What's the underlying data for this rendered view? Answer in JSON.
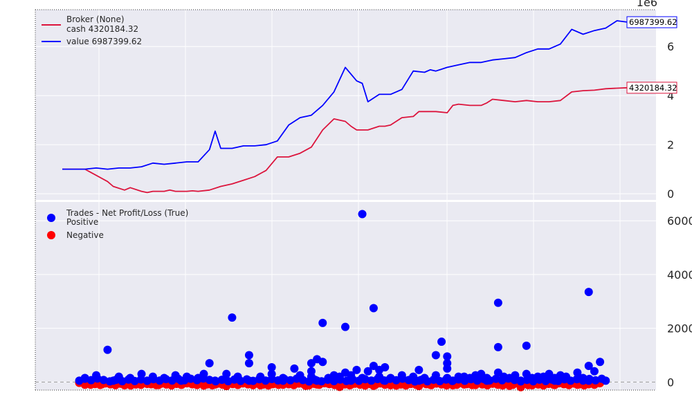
{
  "chart_data": [
    {
      "type": "line",
      "panel": "broker",
      "legend_title": "Broker (None)",
      "legend_placement": "top-left",
      "exponent_label": "1e6",
      "ylim": [
        -0.25,
        7.5
      ],
      "yticks": [
        0,
        2,
        4,
        6
      ],
      "grid": true,
      "series": [
        {
          "name": "cash 4320184.32",
          "color": "#dc143c",
          "last_value_label": "4320184.32",
          "x": [
            0,
            4,
            8,
            9,
            11,
            12,
            14,
            15,
            16,
            18,
            19,
            20,
            22,
            23,
            24,
            26,
            28,
            30,
            32,
            34,
            36,
            38,
            40,
            42,
            44,
            46,
            48,
            50,
            51,
            52,
            54,
            56,
            57,
            58,
            60,
            62,
            63,
            64,
            66,
            68,
            69,
            70,
            72,
            74,
            75,
            76,
            78,
            80,
            82,
            84,
            86,
            88,
            90,
            92,
            94,
            96,
            98,
            100
          ],
          "y": [
            1.0,
            1.0,
            0.5,
            0.3,
            0.15,
            0.25,
            0.1,
            0.05,
            0.1,
            0.1,
            0.15,
            0.1,
            0.1,
            0.12,
            0.1,
            0.15,
            0.3,
            0.4,
            0.55,
            0.7,
            0.95,
            1.5,
            1.5,
            1.65,
            1.9,
            2.6,
            3.05,
            2.95,
            2.75,
            2.6,
            2.6,
            2.75,
            2.75,
            2.8,
            3.1,
            3.15,
            3.35,
            3.35,
            3.35,
            3.3,
            3.6,
            3.65,
            3.6,
            3.6,
            3.7,
            3.85,
            3.8,
            3.75,
            3.8,
            3.75,
            3.75,
            3.8,
            4.15,
            4.2,
            4.22,
            4.28,
            4.3,
            4.32
          ]
        },
        {
          "name": "value 6987399.62",
          "color": "#0000ff",
          "last_value_label": "6987399.62",
          "x": [
            0,
            4,
            6,
            8,
            10,
            12,
            14,
            16,
            18,
            20,
            22,
            24,
            26,
            27,
            28,
            30,
            32,
            34,
            36,
            38,
            40,
            42,
            44,
            46,
            48,
            50,
            52,
            53,
            54,
            56,
            58,
            60,
            62,
            64,
            65,
            66,
            68,
            70,
            72,
            74,
            76,
            78,
            80,
            82,
            84,
            86,
            88,
            90,
            92,
            94,
            96,
            98,
            100
          ],
          "y": [
            1.0,
            1.0,
            1.05,
            1.0,
            1.05,
            1.05,
            1.1,
            1.25,
            1.2,
            1.25,
            1.3,
            1.3,
            1.8,
            2.55,
            1.85,
            1.85,
            1.95,
            1.95,
            2.0,
            2.15,
            2.8,
            3.1,
            3.2,
            3.6,
            4.15,
            5.15,
            4.6,
            4.5,
            3.75,
            4.05,
            4.05,
            4.25,
            5.0,
            4.95,
            5.05,
            5.0,
            5.15,
            5.25,
            5.35,
            5.35,
            5.45,
            5.5,
            5.55,
            5.75,
            5.9,
            5.9,
            6.1,
            6.7,
            6.5,
            6.65,
            6.75,
            7.05,
            6.99
          ]
        }
      ]
    },
    {
      "type": "scatter",
      "panel": "trades",
      "legend_title": "Trades - Net Profit/Loss (True)",
      "legend_placement": "top-left",
      "ylim": [
        -300,
        6700
      ],
      "yticks": [
        0,
        2000,
        4000,
        6000
      ],
      "grid": true,
      "zero_line": true,
      "series": [
        {
          "name": "Positive",
          "color": "#0000ff",
          "points": [
            [
              8,
              1200
            ],
            [
              30,
              2400
            ],
            [
              33,
              1000
            ],
            [
              33,
              700
            ],
            [
              37,
              550
            ],
            [
              46,
              2200
            ],
            [
              46,
              750
            ],
            [
              45,
              850
            ],
            [
              50,
              2050
            ],
            [
              53,
              6250
            ],
            [
              55,
              2750
            ],
            [
              57,
              550
            ],
            [
              63,
              450
            ],
            [
              67,
              1500
            ],
            [
              66,
              1000
            ],
            [
              68,
              950
            ],
            [
              68,
              700
            ],
            [
              68,
              500
            ],
            [
              77,
              2950
            ],
            [
              77,
              1300
            ],
            [
              77,
              350
            ],
            [
              82,
              1350
            ],
            [
              82,
              300
            ],
            [
              93,
              3350
            ],
            [
              93,
              600
            ],
            [
              95,
              750
            ],
            [
              29,
              300
            ],
            [
              25,
              300
            ],
            [
              31,
              200
            ],
            [
              41,
              500
            ],
            [
              44,
              700
            ],
            [
              44,
              400
            ],
            [
              26,
              700
            ],
            [
              48,
              250
            ],
            [
              50,
              350
            ],
            [
              52,
              450
            ],
            [
              54,
              400
            ],
            [
              55,
              600
            ],
            [
              56,
              450
            ],
            [
              70,
              200
            ],
            [
              72,
              150
            ],
            [
              74,
              300
            ],
            [
              79,
              150
            ],
            [
              84,
              200
            ],
            [
              86,
              300
            ],
            [
              88,
              250
            ],
            [
              91,
              350
            ],
            [
              94,
              400
            ],
            [
              4,
              150
            ],
            [
              6,
              250
            ],
            [
              10,
              200
            ],
            [
              12,
              150
            ],
            [
              14,
              300
            ],
            [
              16,
              200
            ],
            [
              18,
              150
            ],
            [
              20,
              250
            ],
            [
              22,
              200
            ],
            [
              24,
              150
            ],
            [
              35,
              200
            ],
            [
              37,
              300
            ],
            [
              39,
              150
            ],
            [
              42,
              250
            ],
            [
              44,
              200
            ],
            [
              47,
              150
            ],
            [
              49,
              200
            ],
            [
              51,
              250
            ],
            [
              53,
              150
            ],
            [
              56,
              200
            ],
            [
              58,
              150
            ],
            [
              60,
              250
            ],
            [
              62,
              200
            ],
            [
              64,
              150
            ],
            [
              66,
              250
            ],
            [
              68,
              150
            ],
            [
              71,
              200
            ],
            [
              73,
              250
            ],
            [
              75,
              150
            ],
            [
              78,
              200
            ],
            [
              80,
              250
            ],
            [
              83,
              150
            ],
            [
              85,
              200
            ],
            [
              87,
              150
            ],
            [
              89,
              200
            ],
            [
              92,
              150
            ],
            [
              96,
              50
            ],
            [
              3,
              50
            ],
            [
              9,
              50
            ],
            [
              15,
              50
            ],
            [
              21,
              50
            ],
            [
              27,
              50
            ],
            [
              33,
              50
            ],
            [
              39,
              50
            ],
            [
              45,
              50
            ],
            [
              51,
              50
            ],
            [
              57,
              50
            ],
            [
              63,
              50
            ],
            [
              69,
              50
            ],
            [
              75,
              50
            ],
            [
              81,
              50
            ],
            [
              87,
              50
            ],
            [
              93,
              50
            ]
          ]
        },
        {
          "name": "Negative",
          "color": "#ff0000",
          "points": [
            [
              3,
              -30
            ],
            [
              5,
              -100
            ],
            [
              7,
              -80
            ],
            [
              9,
              -60
            ],
            [
              11,
              -120
            ],
            [
              13,
              -90
            ],
            [
              15,
              -70
            ],
            [
              17,
              -110
            ],
            [
              19,
              -60
            ],
            [
              21,
              -100
            ],
            [
              23,
              -80
            ],
            [
              25,
              -130
            ],
            [
              27,
              -90
            ],
            [
              29,
              -150
            ],
            [
              31,
              -100
            ],
            [
              33,
              -60
            ],
            [
              35,
              -120
            ],
            [
              37,
              -80
            ],
            [
              39,
              -100
            ],
            [
              41,
              -70
            ],
            [
              43,
              -140
            ],
            [
              45,
              -90
            ],
            [
              47,
              -60
            ],
            [
              49,
              -180
            ],
            [
              51,
              -100
            ],
            [
              53,
              -80
            ],
            [
              55,
              -140
            ],
            [
              57,
              -100
            ],
            [
              59,
              -130
            ],
            [
              61,
              -80
            ],
            [
              63,
              -150
            ],
            [
              65,
              -100
            ],
            [
              67,
              -60
            ],
            [
              69,
              -120
            ],
            [
              71,
              -90
            ],
            [
              73,
              -110
            ],
            [
              75,
              -70
            ],
            [
              77,
              -100
            ],
            [
              79,
              -140
            ],
            [
              81,
              -190
            ],
            [
              83,
              -120
            ],
            [
              85,
              -80
            ],
            [
              87,
              -110
            ],
            [
              89,
              -70
            ],
            [
              91,
              -100
            ],
            [
              93,
              -80
            ],
            [
              95,
              -40
            ]
          ]
        }
      ]
    }
  ]
}
